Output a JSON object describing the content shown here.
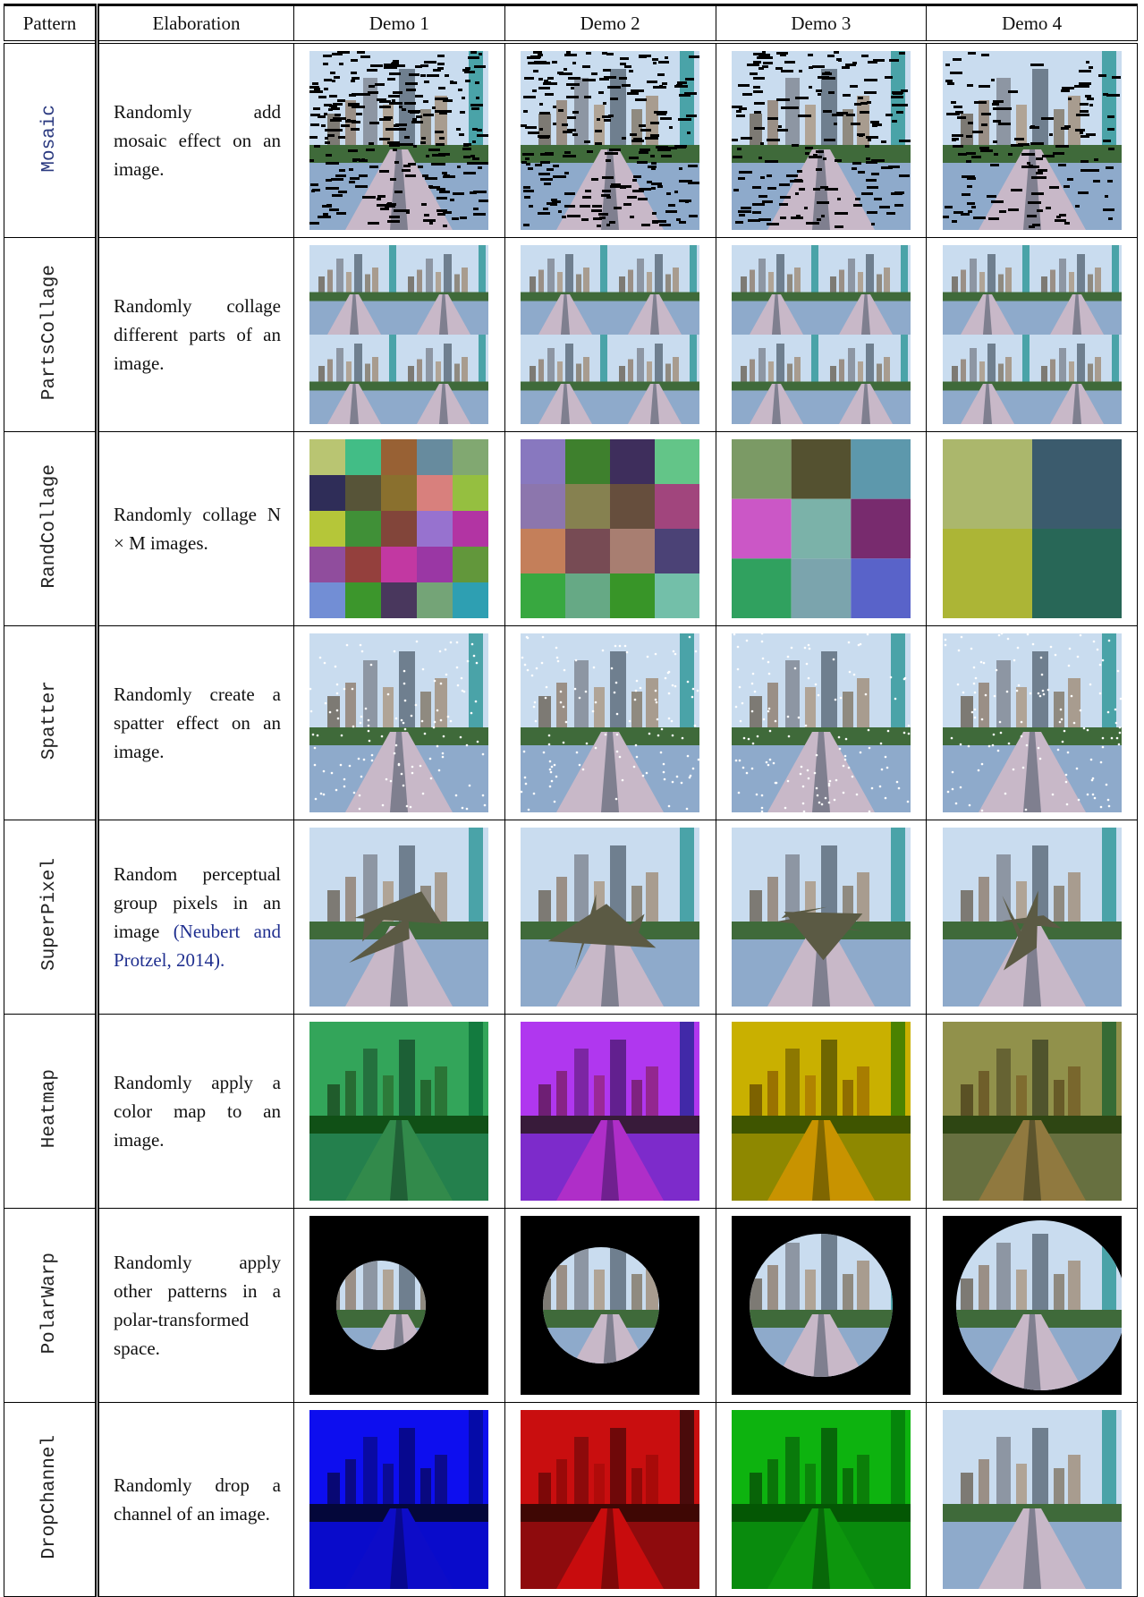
{
  "header": {
    "columns": [
      "Pattern",
      "Elaboration",
      "Demo 1",
      "Demo 2",
      "Demo 3",
      "Demo 4"
    ]
  },
  "rows": [
    {
      "pattern": "Mosaic",
      "elaboration": "Randomly add mosaic effect on an image."
    },
    {
      "pattern": "PartsCollage",
      "elaboration": "Randomly collage different parts of an image."
    },
    {
      "pattern": "RandCollage",
      "elaboration": "Randomly collage N × M images."
    },
    {
      "pattern": "Spatter",
      "elaboration": "Randomly create a spatter effect on an image."
    },
    {
      "pattern": "SuperPixel",
      "elaboration": "Random perceptual group pixels in an image",
      "citation": "(Neubert and Protzel, 2014)."
    },
    {
      "pattern": "Heatmap",
      "elaboration": "Randomly apply a color map to an image."
    },
    {
      "pattern": "PolarWarp",
      "elaboration": "Randomly apply other patterns in a polar-transformed space."
    },
    {
      "pattern": "DropChannel",
      "elaboration": "Randomly drop a channel of an image."
    }
  ]
}
